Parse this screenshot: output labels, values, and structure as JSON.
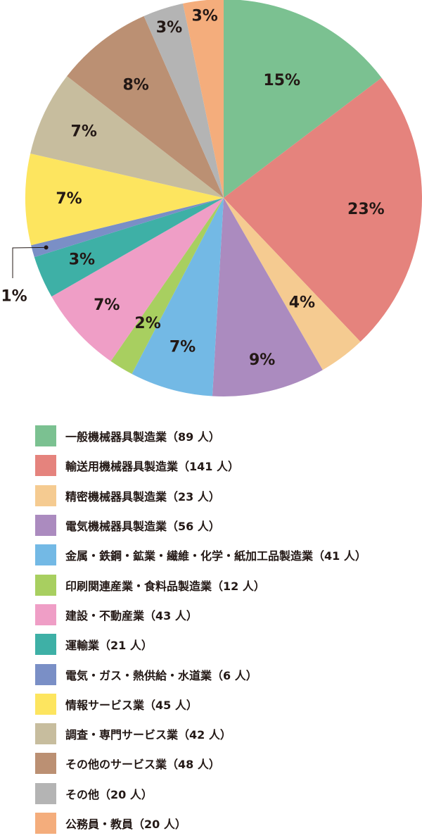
{
  "chart_data": {
    "type": "pie",
    "slices": [
      {
        "category": "一般機械器具製造業",
        "count_label": "（89 人）",
        "percent_label": "15%",
        "value": 89,
        "color": "#7bc191"
      },
      {
        "category": "輸送用機械器具製造業",
        "count_label": "（141 人）",
        "percent_label": "23%",
        "value": 141,
        "color": "#e5837d"
      },
      {
        "category": "精密機械器具製造業",
        "count_label": "（23 人）",
        "percent_label": "4%",
        "value": 23,
        "color": "#f5cb91"
      },
      {
        "category": "電気機械器具製造業",
        "count_label": "（56 人）",
        "percent_label": "9%",
        "value": 56,
        "color": "#ab8bbf"
      },
      {
        "category": "金属・鉄鋼・鉱業・繊維・化学・紙加工品製造業",
        "count_label": "（41 人）",
        "percent_label": "7%",
        "value": 41,
        "color": "#73b9e5"
      },
      {
        "category": "印刷関連産業・食料品製造業",
        "count_label": "（12 人）",
        "percent_label": "2%",
        "value": 12,
        "color": "#a8cf60"
      },
      {
        "category": "建設・不動産業",
        "count_label": "（43 人）",
        "percent_label": "7%",
        "value": 43,
        "color": "#ef9ec6"
      },
      {
        "category": "運輸業",
        "count_label": "（21 人）",
        "percent_label": "3%",
        "value": 21,
        "color": "#3eb0a6"
      },
      {
        "category": "電気・ガス・熱供給・水道業",
        "count_label": "（6 人）",
        "percent_label": "1%",
        "value": 6,
        "color": "#7a8fc6"
      },
      {
        "category": "情報サービス業",
        "count_label": "（45 人）",
        "percent_label": "7%",
        "value": 45,
        "color": "#fde55f"
      },
      {
        "category": "調査・専門サービス業",
        "count_label": "（42 人）",
        "percent_label": "7%",
        "value": 42,
        "color": "#c7bd9e"
      },
      {
        "category": "その他のサービス業",
        "count_label": "（48 人）",
        "percent_label": "8%",
        "value": 48,
        "color": "#bb9073"
      },
      {
        "category": "その他",
        "count_label": "（20 人）",
        "percent_label": "3%",
        "value": 20,
        "color": "#b4b4b4"
      },
      {
        "category": "公務員・教員",
        "count_label": "（20 人）",
        "percent_label": "3%",
        "value": 20,
        "color": "#f4ad7c"
      }
    ],
    "start": "12 o'clock",
    "direction": "clockwise",
    "legend_position": "bottom",
    "title": "",
    "xlabel": "",
    "ylabel": ""
  }
}
